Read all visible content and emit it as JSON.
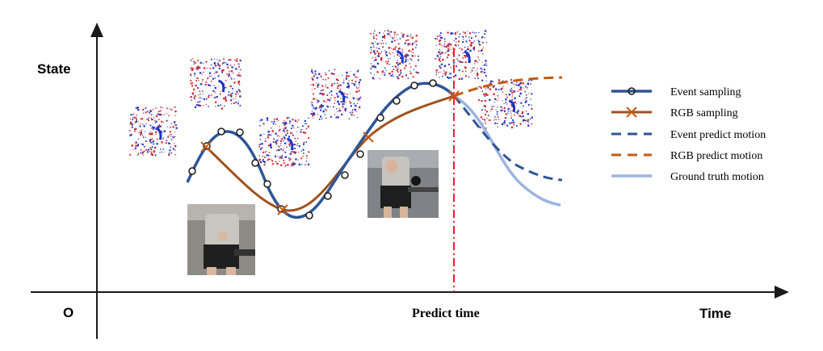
{
  "axes": {
    "y_label": "State",
    "x_label": "Time",
    "origin_label": "O",
    "predict_time_label": "Predict time"
  },
  "legend": {
    "items": [
      {
        "label": "Event sampling"
      },
      {
        "label": "RGB sampling"
      },
      {
        "label": "Event predict motion"
      },
      {
        "label": "RGB predict motion"
      },
      {
        "label": "Ground truth motion"
      }
    ]
  },
  "colors": {
    "event": "#2f5597",
    "rgb": "#a0521d",
    "rgb_predict": "#c55a11",
    "ground_truth": "#9db4e0",
    "predict_line": "#e8202a",
    "axis": "#1a1a1a"
  },
  "thumbnails": {
    "event_frames": 7,
    "rgb_frames": 2
  }
}
